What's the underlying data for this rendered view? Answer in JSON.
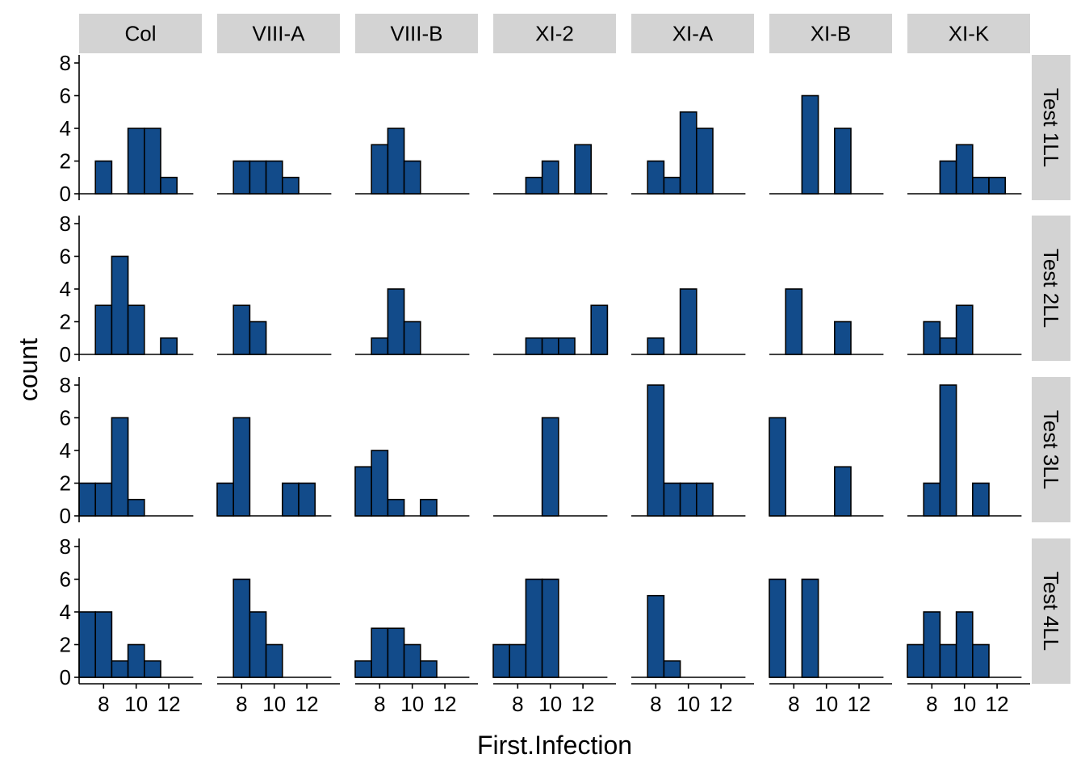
{
  "chart_data": {
    "type": "bar",
    "xlabel": "First.Infection",
    "ylabel": "count",
    "ylim": [
      0,
      8
    ],
    "y_ticks": [
      "0",
      "2",
      "4",
      "6",
      "8"
    ],
    "x_ticks": [
      8,
      10,
      12
    ],
    "x_tick_labels": [
      "8",
      "10",
      "12"
    ],
    "xlim": [
      6.5,
      13.8
    ],
    "bin_width": 1,
    "bar_color": "#124b8a",
    "bar_border": "#000000",
    "strip_color": "#d3d3d3",
    "columns": [
      "Col",
      "VIII-A",
      "VIII-B",
      "XI-2",
      "XI-A",
      "XI-B",
      "XI-K"
    ],
    "rows": [
      "Test 1LL",
      "Test 2LL",
      "Test 3LL",
      "Test 4LL"
    ],
    "bins": [
      7,
      8,
      9,
      10,
      11,
      12,
      13
    ],
    "panels": [
      [
        [
          0,
          2,
          0,
          4,
          4,
          1,
          0
        ],
        [
          0,
          2,
          2,
          2,
          1,
          0,
          0
        ],
        [
          0,
          3,
          4,
          2,
          0,
          0,
          0
        ],
        [
          0,
          0,
          1,
          2,
          0,
          3,
          0
        ],
        [
          0,
          2,
          1,
          5,
          4,
          0,
          0
        ],
        [
          0,
          0,
          6,
          0,
          4,
          0,
          0
        ],
        [
          0,
          0,
          2,
          3,
          1,
          1,
          0
        ]
      ],
      [
        [
          0,
          3,
          6,
          3,
          0,
          1,
          0
        ],
        [
          0,
          3,
          2,
          0,
          0,
          0,
          0
        ],
        [
          0,
          1,
          4,
          2,
          0,
          0,
          0
        ],
        [
          0,
          0,
          1,
          1,
          1,
          0,
          3
        ],
        [
          0,
          1,
          0,
          4,
          0,
          0,
          0
        ],
        [
          0,
          4,
          0,
          0,
          2,
          0,
          0
        ],
        [
          0,
          2,
          1,
          3,
          0,
          0,
          0
        ]
      ],
      [
        [
          2,
          2,
          6,
          1,
          0,
          0,
          0
        ],
        [
          2,
          6,
          0,
          0,
          2,
          2,
          0
        ],
        [
          3,
          4,
          1,
          0,
          1,
          0,
          0
        ],
        [
          0,
          0,
          0,
          6,
          0,
          0,
          0
        ],
        [
          0,
          8,
          2,
          2,
          2,
          0,
          0
        ],
        [
          6,
          0,
          0,
          0,
          3,
          0,
          0
        ],
        [
          0,
          2,
          8,
          0,
          2,
          0,
          0
        ]
      ],
      [
        [
          4,
          4,
          1,
          2,
          1,
          0,
          0
        ],
        [
          0,
          6,
          4,
          2,
          0,
          0,
          0
        ],
        [
          1,
          3,
          3,
          2,
          1,
          0,
          0
        ],
        [
          2,
          2,
          6,
          6,
          0,
          0,
          0
        ],
        [
          0,
          5,
          1,
          0,
          0,
          0,
          0
        ],
        [
          6,
          0,
          6,
          0,
          0,
          0,
          0
        ],
        [
          2,
          4,
          2,
          4,
          2,
          0,
          0
        ]
      ]
    ]
  }
}
